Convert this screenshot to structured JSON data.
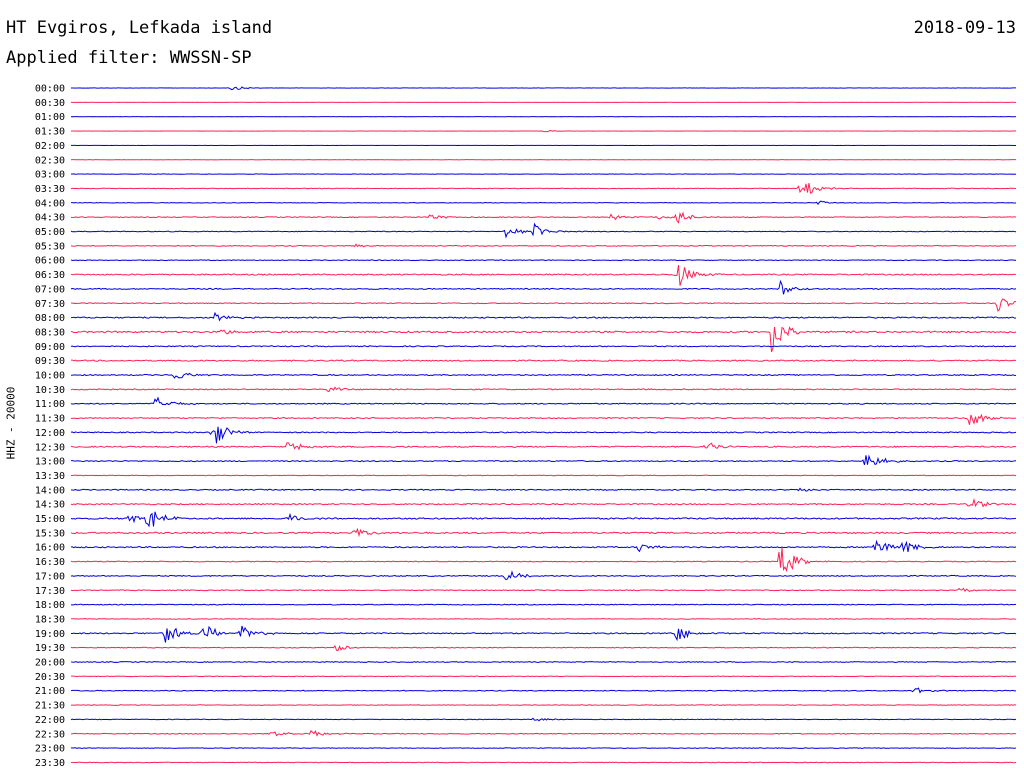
{
  "header": {
    "station": "HT Evgiros, Lefkada island",
    "date": "2018-09-13",
    "filter": "Applied filter: WWSSN-SP"
  },
  "axis": {
    "channel_label": "HHZ - 20000"
  },
  "colors": {
    "odd": "#0000dd",
    "even": "#ff2255"
  },
  "chart_data": {
    "type": "line",
    "title": "HT Evgiros, Lefkada island",
    "date": "2018-09-13",
    "subtitle": "Applied filter: WWSSN-SP",
    "ylabel": "HHZ - 20000",
    "xlabel": "",
    "rows": [
      "00:00",
      "00:30",
      "01:00",
      "01:30",
      "02:00",
      "02:30",
      "03:00",
      "03:30",
      "04:00",
      "04:30",
      "05:00",
      "05:30",
      "06:00",
      "06:30",
      "07:00",
      "07:30",
      "08:00",
      "08:30",
      "09:00",
      "09:30",
      "10:00",
      "10:30",
      "11:00",
      "11:30",
      "12:00",
      "12:30",
      "13:00",
      "13:30",
      "14:00",
      "14:30",
      "15:00",
      "15:30",
      "16:00",
      "16:30",
      "17:00",
      "17:30",
      "18:00",
      "18:30",
      "19:00",
      "19:30",
      "20:00",
      "20:30",
      "21:00",
      "21:30",
      "22:00",
      "22:30",
      "23:00",
      "23:30"
    ],
    "row_colors": [
      "blue",
      "red"
    ],
    "noise_level": [
      0.15,
      0.08,
      0.08,
      0.08,
      0.08,
      0.12,
      0.2,
      0.3,
      0.25,
      0.4,
      0.35,
      0.4,
      0.35,
      0.6,
      0.5,
      0.45,
      0.6,
      0.8,
      0.5,
      0.6,
      0.5,
      0.5,
      0.5,
      0.5,
      0.5,
      0.6,
      0.5,
      0.3,
      0.5,
      0.6,
      0.7,
      0.7,
      0.6,
      0.4,
      0.5,
      0.4,
      0.4,
      0.3,
      0.6,
      0.4,
      0.4,
      0.3,
      0.4,
      0.3,
      0.3,
      0.4,
      0.3,
      0.3
    ],
    "events": [
      {
        "row": "00:00",
        "t": 0.17,
        "amp": 2.5
      },
      {
        "row": "01:30",
        "t": 0.5,
        "amp": 1.0
      },
      {
        "row": "03:30",
        "t": 0.77,
        "amp": 14
      },
      {
        "row": "04:00",
        "t": 0.79,
        "amp": 2
      },
      {
        "row": "04:30",
        "t": 0.38,
        "amp": 3
      },
      {
        "row": "04:30",
        "t": 0.57,
        "amp": 3
      },
      {
        "row": "04:30",
        "t": 0.62,
        "amp": 2.5
      },
      {
        "row": "04:30",
        "t": 0.64,
        "amp": 8
      },
      {
        "row": "05:00",
        "t": 0.46,
        "amp": 6
      },
      {
        "row": "05:00",
        "t": 0.49,
        "amp": 8
      },
      {
        "row": "05:30",
        "t": 0.3,
        "amp": 2
      },
      {
        "row": "06:30",
        "t": 0.64,
        "amp": 16
      },
      {
        "row": "07:00",
        "t": 0.75,
        "amp": 8
      },
      {
        "row": "07:30",
        "t": 0.98,
        "amp": 9
      },
      {
        "row": "08:00",
        "t": 0.15,
        "amp": 5
      },
      {
        "row": "08:30",
        "t": 0.16,
        "amp": 3
      },
      {
        "row": "08:30",
        "t": 0.74,
        "amp": 24
      },
      {
        "row": "10:00",
        "t": 0.11,
        "amp": 6
      },
      {
        "row": "10:30",
        "t": 0.27,
        "amp": 4
      },
      {
        "row": "11:00",
        "t": 0.09,
        "amp": 8
      },
      {
        "row": "11:30",
        "t": 0.95,
        "amp": 10
      },
      {
        "row": "12:00",
        "t": 0.15,
        "amp": 16
      },
      {
        "row": "12:30",
        "t": 0.23,
        "amp": 8
      },
      {
        "row": "12:30",
        "t": 0.67,
        "amp": 6
      },
      {
        "row": "13:00",
        "t": 0.84,
        "amp": 12
      },
      {
        "row": "14:00",
        "t": 0.77,
        "amp": 3
      },
      {
        "row": "14:30",
        "t": 0.95,
        "amp": 7
      },
      {
        "row": "15:00",
        "t": 0.06,
        "amp": 6
      },
      {
        "row": "15:00",
        "t": 0.08,
        "amp": 14
      },
      {
        "row": "15:00",
        "t": 0.23,
        "amp": 5
      },
      {
        "row": "15:30",
        "t": 0.3,
        "amp": 7
      },
      {
        "row": "16:00",
        "t": 0.6,
        "amp": 5
      },
      {
        "row": "16:00",
        "t": 0.85,
        "amp": 10
      },
      {
        "row": "16:00",
        "t": 0.88,
        "amp": 8
      },
      {
        "row": "16:30",
        "t": 0.75,
        "amp": 20
      },
      {
        "row": "17:00",
        "t": 0.46,
        "amp": 6
      },
      {
        "row": "17:30",
        "t": 0.94,
        "amp": 3
      },
      {
        "row": "19:00",
        "t": 0.1,
        "amp": 12
      },
      {
        "row": "19:00",
        "t": 0.14,
        "amp": 10
      },
      {
        "row": "19:00",
        "t": 0.18,
        "amp": 8
      },
      {
        "row": "19:00",
        "t": 0.64,
        "amp": 8
      },
      {
        "row": "19:30",
        "t": 0.28,
        "amp": 4
      },
      {
        "row": "21:00",
        "t": 0.89,
        "amp": 4
      },
      {
        "row": "22:00",
        "t": 0.49,
        "amp": 2
      },
      {
        "row": "22:30",
        "t": 0.25,
        "amp": 6
      },
      {
        "row": "22:30",
        "t": 0.21,
        "amp": 4
      }
    ]
  }
}
